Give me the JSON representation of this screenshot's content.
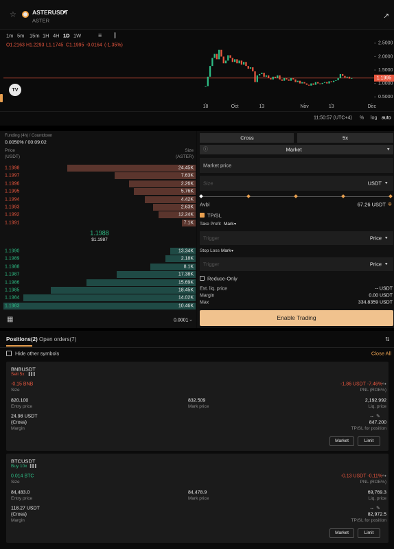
{
  "header": {
    "symbol": "ASTERUSDT",
    "name": "ASTER"
  },
  "timeframes": [
    "1m",
    "5m",
    "15m",
    "1H",
    "4H",
    "1D",
    "1W"
  ],
  "ohlc": [
    "O1.2163",
    "H1.2293",
    "L1.1745",
    "C1.1995",
    "-0.0164",
    "(-1.35%)"
  ],
  "chart_data": {
    "type": "candlestick",
    "values": [
      0.9,
      1.25,
      1.65,
      1.95,
      2.1,
      1.9,
      2.25,
      2.0,
      1.75,
      1.85,
      2.05,
      1.95,
      1.8,
      1.9,
      1.75,
      1.85,
      1.7,
      1.8,
      1.65,
      1.55,
      1.6,
      1.45,
      1.05,
      1.3,
      1.35,
      1.4,
      1.25,
      1.3,
      1.2,
      1.15,
      1.25,
      1.2,
      1.3,
      1.15,
      1.1,
      1.2,
      1.15,
      1.1,
      1.2,
      1.15,
      1.05,
      1.1,
      1.0,
      1.05,
      1.0,
      0.95,
      0.92,
      1.0,
      0.95,
      1.05,
      1.0,
      0.98,
      1.02,
      1.05,
      1.0,
      1.08,
      1.05,
      1.1,
      1.12,
      1.2,
      1.35,
      1.28,
      1.22,
      1.25,
      1.18,
      1.1995
    ],
    "ylim": [
      0.3,
      2.65
    ],
    "yticks": [
      {
        "value": 2.5,
        "label": "2.5000"
      },
      {
        "value": 2.0,
        "label": "2.0000"
      },
      {
        "value": 1.5,
        "label": "1.5000"
      },
      {
        "value": 1.0,
        "label": "1.0000"
      },
      {
        "value": 0.5,
        "label": "0.5000"
      }
    ],
    "xlim": [
      -90,
      75
    ],
    "xticks": [
      {
        "value": 0,
        "label": "18"
      },
      {
        "value": 13,
        "label": "Oct"
      },
      {
        "value": 25,
        "label": "13"
      },
      {
        "value": 44,
        "label": "Nov"
      },
      {
        "value": 56,
        "label": "13"
      },
      {
        "value": 74,
        "label": "Dec"
      }
    ],
    "last_price": {
      "value": 1.1995,
      "label": "1.1995"
    },
    "up_color": "#2ebd85",
    "down_color": "#e9573f"
  },
  "chart_footer": {
    "time": "11:50:57 (UTC+4)",
    "percent": "%",
    "log": "log",
    "auto": "auto"
  },
  "orderbook": {
    "funding_label": "Funding (4h) / Countdown",
    "funding": "0.0050% / 00:09:02",
    "price_header": "Price",
    "price_unit": "(USDT)",
    "size_header": "Size",
    "size_unit": "(ASTER)",
    "asks": [
      {
        "price": "1.1998",
        "size": 24450,
        "size_label": "24.45K"
      },
      {
        "price": "1.1997",
        "size": 7630,
        "size_label": "7.63K"
      },
      {
        "price": "1.1996",
        "size": 2260,
        "size_label": "2.26K"
      },
      {
        "price": "1.1995",
        "size": 5760,
        "size_label": "5.76K"
      },
      {
        "price": "1.1994",
        "size": 4420,
        "size_label": "4.42K"
      },
      {
        "price": "1.1993",
        "size": 2630,
        "size_label": "2.63K"
      },
      {
        "price": "1.1992",
        "size": 12240,
        "size_label": "12.24K"
      },
      {
        "price": "1.1991",
        "size": 7100,
        "size_label": "7.1K"
      }
    ],
    "bids": [
      {
        "price": "1.1990",
        "size": 13340,
        "size_label": "13.34K"
      },
      {
        "price": "1.1989",
        "size": 2180,
        "size_label": "2.18K"
      },
      {
        "price": "1.1988",
        "size": 8100,
        "size_label": "8.1K"
      },
      {
        "price": "1.1987",
        "size": 17380,
        "size_label": "17.38K"
      },
      {
        "price": "1.1986",
        "size": 15690,
        "size_label": "15.69K"
      },
      {
        "price": "1.1985",
        "size": 18450,
        "size_label": "18.45K"
      },
      {
        "price": "1.1984",
        "size": 14020,
        "size_label": "14.02K"
      },
      {
        "price": "1.1983",
        "size": 10460,
        "size_label": "10.46K"
      }
    ],
    "mid_price": "1.1988",
    "mark_price": "$1.1987",
    "tick_size": "0.0001"
  },
  "order_form": {
    "margin_mode": "Cross",
    "leverage": "5x",
    "order_type": "Market",
    "price_placeholder": "Market price",
    "size_placeholder": "Size",
    "size_unit": "USDT",
    "avbl_label": "Avbl",
    "avbl": "67.26 USDT",
    "tpsl": "TP/SL",
    "take_profit": "Take Profit",
    "tp_trigger_type": "Mark",
    "tp_trigger": "Trigger",
    "tp_price_type": "Price",
    "stop_loss": "Stop Loss",
    "sl_trigger_type": "Mark",
    "sl_trigger": "Trigger",
    "sl_price_type": "Price",
    "reduce_only": "Reduce-Only",
    "est_liq_label": "Est. liq. price",
    "est_liq": "-- USDT",
    "margin_label": "Margin",
    "margin": "0.00 USDT",
    "max_label": "Max",
    "max": "334.8359 USDT",
    "submit": "Enable Trading"
  },
  "positions": {
    "tab_positions": "Positions(2)",
    "tab_orders": "Open orders(7)",
    "hide_other": "Hide other symbols",
    "close_all": "Close All",
    "items": [
      {
        "symbol": "BNBUSDT",
        "side": "Sell 5x",
        "size": "-0.15 BNB",
        "size_label": "Size",
        "pnl": "-1.86 USDT -7.46%",
        "pnl_label": "PNL (ROE%)",
        "entry": "820.100",
        "entry_label": "Entry price",
        "mark": "832.509",
        "mark_label": "Mark price",
        "liq": "2,192.992",
        "liq_label": "Liq. price",
        "margin": "24.98 USDT",
        "margin_mode": "(Cross)",
        "margin_label": "Margin",
        "tpsl": "--",
        "tpsl_price": "847.200",
        "tpsl_label": "TP/SL for position",
        "market": "Market",
        "limit": "Limit"
      },
      {
        "symbol": "BTCUSDT",
        "side": "Buy 10x",
        "size": "0.014 BTC",
        "size_label": "Size",
        "pnl": "-0.13 USDT -0.11%",
        "pnl_label": "PNL (ROE%)",
        "entry": "84,483.0",
        "entry_label": "Entry price",
        "mark": "84,478.9",
        "mark_label": "Mark price",
        "liq": "69,769.3",
        "liq_label": "Liq. price",
        "margin": "118.27 USDT",
        "margin_mode": "(Cross)",
        "margin_label": "Margin",
        "tpsl": "--",
        "tpsl_price": "82,972.5",
        "tpsl_label": "TP/SL for position",
        "market": "Market",
        "limit": "Limit"
      }
    ]
  }
}
